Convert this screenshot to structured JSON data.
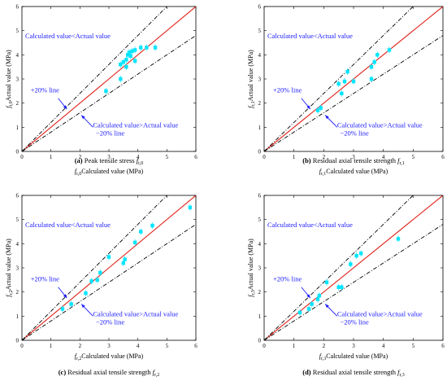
{
  "colors": {
    "ideal_line": "#e0231b",
    "bound_line": "#000000",
    "points": "#00e5ff",
    "annotation": "#1a1aff",
    "arrow": "#1a1aff"
  },
  "chart_data": [
    {
      "type": "scatter",
      "panel": "a",
      "xlabel_sub": "t,0",
      "xlabel_rest": "Calculated value (MPa)",
      "ylabel_sub": "t,0",
      "ylabel_rest": "Actual value (MPa)",
      "xlim": [
        0,
        6
      ],
      "ylim": [
        0,
        6
      ],
      "xticks": [
        "0",
        "1",
        "2",
        "3",
        "4",
        "5",
        "6"
      ],
      "yticks": [
        "0",
        "1",
        "2",
        "3",
        "4",
        "5",
        "6"
      ],
      "caption_letter": "(a)",
      "caption_text": "Peak tensile stress ",
      "caption_sym": "f",
      "caption_sub": "t,0",
      "annotations": {
        "upper": "Calculated value<Actual value",
        "lower": "Calculated value>Actual value",
        "plus20": "+20% line",
        "minus20": "−20% line"
      },
      "points": [
        {
          "x": 2.9,
          "y": 2.5
        },
        {
          "x": 3.4,
          "y": 3.0
        },
        {
          "x": 3.4,
          "y": 3.6
        },
        {
          "x": 3.5,
          "y": 3.7
        },
        {
          "x": 3.6,
          "y": 3.5
        },
        {
          "x": 3.6,
          "y": 3.8
        },
        {
          "x": 3.65,
          "y": 4.0
        },
        {
          "x": 3.7,
          "y": 4.1
        },
        {
          "x": 3.75,
          "y": 3.95
        },
        {
          "x": 3.8,
          "y": 4.15
        },
        {
          "x": 3.9,
          "y": 3.75
        },
        {
          "x": 3.9,
          "y": 4.2
        },
        {
          "x": 4.1,
          "y": 4.3
        },
        {
          "x": 4.3,
          "y": 4.3
        },
        {
          "x": 4.6,
          "y": 4.3
        }
      ]
    },
    {
      "type": "scatter",
      "panel": "b",
      "xlabel_sub": "r,1",
      "xlabel_rest": "Calculated value (MPa)",
      "ylabel_sub": "r,1",
      "ylabel_rest": "Actual value (MPa)",
      "xlim": [
        0,
        6
      ],
      "ylim": [
        0,
        6
      ],
      "xticks": [
        "0",
        "1",
        "2",
        "3",
        "4",
        "5",
        "6"
      ],
      "yticks": [
        "0",
        "1",
        "2",
        "3",
        "4",
        "5",
        "6"
      ],
      "caption_letter": "(b)",
      "caption_text": "Residual axial tensile strength ",
      "caption_sym": "f",
      "caption_sub": "r,1",
      "annotations": {
        "upper": "Calculated value<Actual value",
        "lower": "Calculated value>Actual value",
        "plus20": "+20% line",
        "minus20": "−20% line"
      },
      "points": [
        {
          "x": 1.8,
          "y": 1.7
        },
        {
          "x": 1.9,
          "y": 1.8
        },
        {
          "x": 2.5,
          "y": 2.8
        },
        {
          "x": 2.6,
          "y": 2.4
        },
        {
          "x": 2.7,
          "y": 2.9
        },
        {
          "x": 2.8,
          "y": 3.3
        },
        {
          "x": 3.0,
          "y": 2.9
        },
        {
          "x": 3.6,
          "y": 3.0
        },
        {
          "x": 3.6,
          "y": 3.5
        },
        {
          "x": 3.7,
          "y": 3.7
        },
        {
          "x": 3.8,
          "y": 4.0
        },
        {
          "x": 4.2,
          "y": 4.2
        }
      ]
    },
    {
      "type": "scatter",
      "panel": "c",
      "xlabel_sub": "r,2",
      "xlabel_rest": "Calculated value (MPa)",
      "ylabel_sub": "r,2",
      "ylabel_rest": "Actual value (MPa)",
      "xlim": [
        0,
        6
      ],
      "ylim": [
        0,
        6
      ],
      "xticks": [
        "0",
        "1",
        "2",
        "3",
        "4",
        "5",
        "6"
      ],
      "yticks": [
        "0",
        "1",
        "2",
        "3",
        "4",
        "5",
        "6"
      ],
      "caption_letter": "(c)",
      "caption_text": "Residual axial tensile strength ",
      "caption_sym": "f",
      "caption_sub": "r,2",
      "annotations": {
        "upper": "Calculated value<Actual value",
        "lower": "Calculated value>Actual value",
        "plus20": "+20% line",
        "minus20": "−20% line"
      },
      "points": [
        {
          "x": 1.4,
          "y": 1.3
        },
        {
          "x": 1.7,
          "y": 1.5
        },
        {
          "x": 2.2,
          "y": 1.95
        },
        {
          "x": 2.4,
          "y": 2.45
        },
        {
          "x": 2.6,
          "y": 2.5
        },
        {
          "x": 2.7,
          "y": 2.8
        },
        {
          "x": 3.0,
          "y": 3.45
        },
        {
          "x": 3.5,
          "y": 3.2
        },
        {
          "x": 3.55,
          "y": 3.35
        },
        {
          "x": 3.9,
          "y": 4.05
        },
        {
          "x": 4.1,
          "y": 4.5
        },
        {
          "x": 4.5,
          "y": 4.75
        },
        {
          "x": 5.8,
          "y": 5.5
        }
      ]
    },
    {
      "type": "scatter",
      "panel": "d",
      "xlabel_sub": "r,3",
      "xlabel_rest": "Calculated value (MPa)",
      "ylabel_sub": "r,3",
      "ylabel_rest": "Actual value (MPa)",
      "xlim": [
        0,
        6
      ],
      "ylim": [
        0,
        6
      ],
      "xticks": [
        "0",
        "1",
        "2",
        "3",
        "4",
        "5",
        "6"
      ],
      "yticks": [
        "0",
        "1",
        "2",
        "3",
        "4",
        "5",
        "6"
      ],
      "caption_letter": "(d)",
      "caption_text": "Residual axial tensile strength ",
      "caption_sym": "f",
      "caption_sub": "r,3",
      "annotations": {
        "upper": "Calculated value<Actual value",
        "lower": "Calculated value>Actual value",
        "plus20": "+20% line",
        "minus20": "−20% line"
      },
      "points": [
        {
          "x": 1.2,
          "y": 1.15
        },
        {
          "x": 1.5,
          "y": 1.3
        },
        {
          "x": 1.6,
          "y": 1.5
        },
        {
          "x": 1.8,
          "y": 1.7
        },
        {
          "x": 1.85,
          "y": 1.85
        },
        {
          "x": 2.1,
          "y": 2.4
        },
        {
          "x": 2.5,
          "y": 2.2
        },
        {
          "x": 2.6,
          "y": 2.2
        },
        {
          "x": 2.9,
          "y": 3.15
        },
        {
          "x": 3.1,
          "y": 3.5
        },
        {
          "x": 3.25,
          "y": 3.6
        },
        {
          "x": 4.5,
          "y": 4.2
        }
      ]
    }
  ]
}
